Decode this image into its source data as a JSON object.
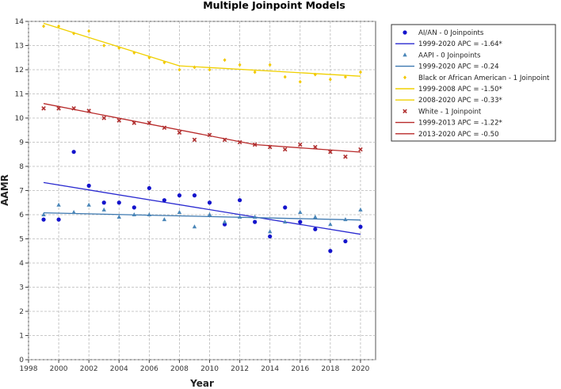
{
  "chart_data": {
    "type": "scatter",
    "title": "Multiple Joinpoint Models",
    "xlabel": "Year",
    "ylabel": "AAMR",
    "xlim": [
      1998,
      2021
    ],
    "ylim": [
      0,
      14
    ],
    "x_ticks": [
      1998,
      2000,
      2002,
      2004,
      2006,
      2008,
      2010,
      2012,
      2014,
      2016,
      2018,
      2020
    ],
    "y_ticks": [
      0,
      1,
      2,
      3,
      4,
      5,
      6,
      7,
      8,
      9,
      10,
      11,
      12,
      13,
      14
    ],
    "grid": true,
    "legend_position": "right",
    "series": [
      {
        "name": "AI/AN - 0 Joinpoints",
        "marker": "circle",
        "color": "#1414cc",
        "x": [
          1999,
          2000,
          2001,
          2002,
          2003,
          2004,
          2005,
          2006,
          2007,
          2008,
          2009,
          2010,
          2011,
          2012,
          2013,
          2014,
          2015,
          2016,
          2017,
          2018,
          2019,
          2020
        ],
        "y": [
          5.8,
          5.8,
          8.6,
          7.2,
          6.5,
          6.5,
          6.3,
          7.1,
          6.6,
          6.8,
          6.8,
          6.5,
          5.6,
          6.6,
          5.7,
          5.1,
          6.3,
          5.7,
          5.4,
          4.5,
          4.9,
          5.5
        ]
      },
      {
        "name": "AAPI - 0 Joinpoints",
        "marker": "triangle",
        "color": "#4a86b8",
        "x": [
          1999,
          2000,
          2001,
          2002,
          2003,
          2004,
          2005,
          2006,
          2007,
          2008,
          2009,
          2010,
          2011,
          2012,
          2013,
          2014,
          2015,
          2016,
          2017,
          2018,
          2019,
          2020
        ],
        "y": [
          6.0,
          6.4,
          6.1,
          6.4,
          6.2,
          5.9,
          6.0,
          6.0,
          5.8,
          6.1,
          5.5,
          6.0,
          5.7,
          5.9,
          5.9,
          5.3,
          5.7,
          6.1,
          5.9,
          5.6,
          5.8,
          6.2
        ]
      },
      {
        "name": "Black or African American - 1 Joinpoint",
        "marker": "diamond",
        "color": "#f2c800",
        "x": [
          1999,
          2000,
          2001,
          2002,
          2003,
          2004,
          2005,
          2006,
          2007,
          2008,
          2009,
          2010,
          2011,
          2012,
          2013,
          2014,
          2015,
          2016,
          2017,
          2018,
          2019,
          2020
        ],
        "y": [
          13.8,
          13.8,
          13.5,
          13.6,
          13.0,
          12.9,
          12.7,
          12.5,
          12.3,
          12.0,
          12.1,
          12.0,
          12.4,
          12.2,
          11.9,
          12.2,
          11.7,
          11.5,
          11.8,
          11.6,
          11.7,
          11.9
        ]
      },
      {
        "name": "White - 1 Joinpoint",
        "marker": "x",
        "color": "#b03030",
        "x": [
          1999,
          2000,
          2001,
          2002,
          2003,
          2004,
          2005,
          2006,
          2007,
          2008,
          2009,
          2010,
          2011,
          2012,
          2013,
          2014,
          2015,
          2016,
          2017,
          2018,
          2019,
          2020
        ],
        "y": [
          10.4,
          10.4,
          10.4,
          10.3,
          10.0,
          9.9,
          9.8,
          9.8,
          9.6,
          9.4,
          9.1,
          9.3,
          9.1,
          9.0,
          8.9,
          8.8,
          8.7,
          8.9,
          8.8,
          8.6,
          8.4,
          8.7
        ]
      }
    ],
    "fit_lines": [
      {
        "name": "1999-2020 APC = -1.64*",
        "color": "#2a2ad0",
        "points": [
          [
            1999,
            7.33
          ],
          [
            2020,
            5.19
          ]
        ]
      },
      {
        "name": "1999-2020 APC = -0.24",
        "color": "#3c78b0",
        "points": [
          [
            1999,
            6.08
          ],
          [
            2020,
            5.78
          ]
        ]
      },
      {
        "name": "1999-2008 APC = -1.50*",
        "color": "#f0d000",
        "points": [
          [
            1999,
            13.92
          ],
          [
            2008,
            12.16
          ]
        ]
      },
      {
        "name": "2008-2020 APC = -0.33*",
        "color": "#f0d000",
        "points": [
          [
            2008,
            12.16
          ],
          [
            2020,
            11.73
          ]
        ]
      },
      {
        "name": "1999-2013 APC = -1.22*",
        "color": "#b82a2a",
        "points": [
          [
            1999,
            10.6
          ],
          [
            2013,
            8.9
          ]
        ]
      },
      {
        "name": "2013-2020 APC = -0.50",
        "color": "#b82a2a",
        "points": [
          [
            2013,
            8.9
          ],
          [
            2020,
            8.59
          ]
        ]
      }
    ],
    "legend": [
      {
        "label": "AI/AN - 0 Joinpoints",
        "kind": "marker",
        "ref": 0
      },
      {
        "label": "1999-2020 APC = -1.64*",
        "kind": "line",
        "ref": 0
      },
      {
        "label": "AAPI - 0 Joinpoints",
        "kind": "marker",
        "ref": 1
      },
      {
        "label": "1999-2020 APC = -0.24",
        "kind": "line",
        "ref": 1
      },
      {
        "label": "Black or African American - 1 Joinpoint",
        "kind": "marker",
        "ref": 2
      },
      {
        "label": "1999-2008 APC = -1.50*",
        "kind": "line",
        "ref": 2
      },
      {
        "label": "2008-2020 APC = -0.33*",
        "kind": "line",
        "ref": 3
      },
      {
        "label": "White - 1 Joinpoint",
        "kind": "marker",
        "ref": 3
      },
      {
        "label": "1999-2013 APC = -1.22*",
        "kind": "line",
        "ref": 4
      },
      {
        "label": "2013-2020 APC = -0.50",
        "kind": "line",
        "ref": 5
      }
    ]
  }
}
